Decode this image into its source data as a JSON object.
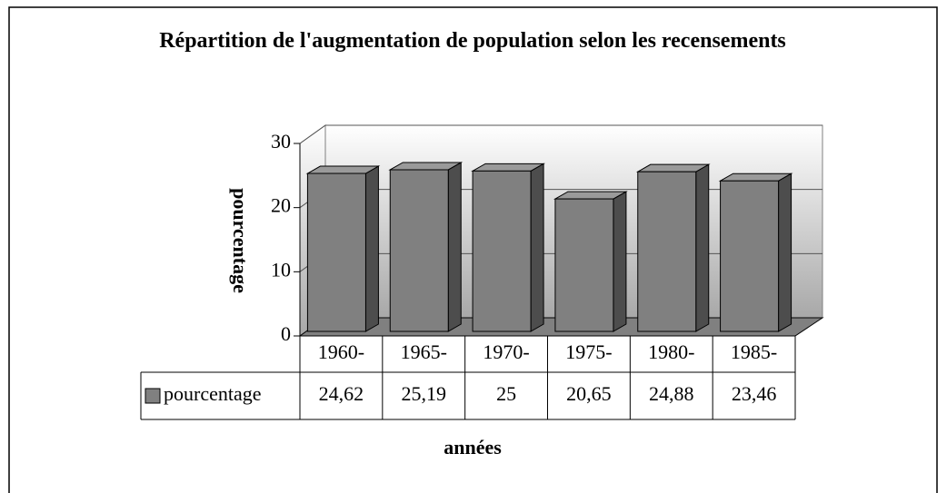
{
  "chart_data": {
    "type": "bar3d",
    "title": "Répartition de l'augmentation de population selon les recensements",
    "x_label": "années",
    "y_label": "pourcentage",
    "categories": [
      "1960-",
      "1965-",
      "1970-",
      "1975-",
      "1980-",
      "1985-"
    ],
    "series": [
      {
        "name": "pourcentage",
        "color": "#808080",
        "values": [
          24.62,
          25.19,
          25,
          20.65,
          24.88,
          23.46
        ],
        "value_labels": [
          "24,62",
          "25,19",
          "25",
          "20,65",
          "24,88",
          "23,46"
        ]
      }
    ],
    "ylim": [
      0,
      30
    ],
    "yticks": [
      0,
      10,
      20,
      30
    ],
    "grid": true,
    "data_table": true
  }
}
